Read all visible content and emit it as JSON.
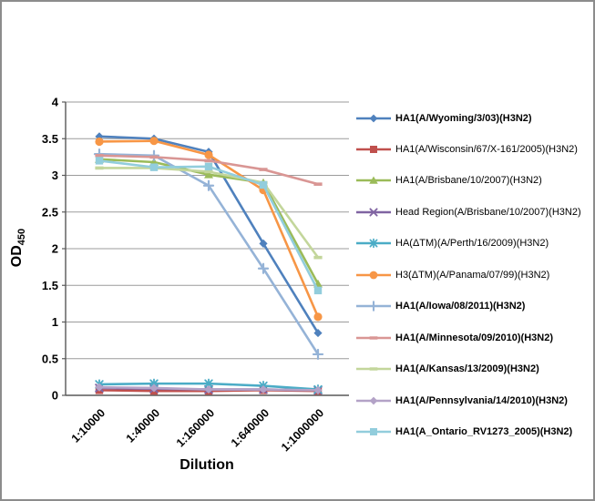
{
  "figure": {
    "background": "#FFFFFF",
    "border_color": "#8C8C8C",
    "gridline_color": "#9B9B9B",
    "axis_line_color": "#595959",
    "tick_label_color": "#000000"
  },
  "chart_data": {
    "type": "line",
    "title": "",
    "xlabel": "Dilution",
    "ylabel": "OD",
    "ylabel_sub": "450",
    "categories": [
      "1:10000",
      "1:40000",
      "1:160000",
      "1:640000",
      "1:1000000"
    ],
    "y_ticks": [
      "0",
      "0.5",
      "1",
      "1.5",
      "2",
      "2.5",
      "3",
      "3.5",
      "4"
    ],
    "ylim": [
      0,
      4
    ],
    "y_step": 0.5,
    "grid": "horizontal",
    "legend_position": "right",
    "series": [
      {
        "name": "HA1(A/Wyoming/3/03)(H3N2)",
        "color": "#4F81BD",
        "marker": "diamond",
        "bold": true,
        "values": [
          3.53,
          3.5,
          3.32,
          2.07,
          0.85
        ]
      },
      {
        "name": "HA1(A/Wisconsin/67/X-161/2005)(H3N2)",
        "color": "#C0504D",
        "marker": "square",
        "bold": false,
        "values": [
          0.07,
          0.06,
          0.06,
          0.07,
          0.06
        ]
      },
      {
        "name": "HA1(A/Brisbane/10/2007)(H3N2)",
        "color": "#9BBB59",
        "marker": "triangle",
        "bold": false,
        "values": [
          3.22,
          3.18,
          3.01,
          2.9,
          1.52
        ]
      },
      {
        "name": "Head Region(A/Brisbane/10/2007)(H3N2)",
        "color": "#8064A2",
        "marker": "x",
        "bold": false,
        "values": [
          0.1,
          0.09,
          0.08,
          0.08,
          0.07
        ]
      },
      {
        "name": "HA(ΔTM)(A/Perth/16/2009)(H3N2)",
        "color": "#4BACC6",
        "marker": "star",
        "bold": false,
        "values": [
          0.15,
          0.16,
          0.16,
          0.13,
          0.08
        ]
      },
      {
        "name": "H3(ΔTM)(A/Panama/07/99)(H3N2)",
        "color": "#F79646",
        "marker": "circle",
        "bold": false,
        "values": [
          3.46,
          3.47,
          3.28,
          2.8,
          1.07
        ]
      },
      {
        "name": "HA1(A/Iowa/08/2011)(H3N2)",
        "color": "#95B3D7",
        "marker": "plus",
        "bold": true,
        "values": [
          3.29,
          3.27,
          2.86,
          1.73,
          0.56
        ]
      },
      {
        "name": "HA1(A/Minnesota/09/2010)(H3N2)",
        "color": "#D99694",
        "marker": "dash",
        "bold": true,
        "values": [
          3.27,
          3.25,
          3.2,
          3.08,
          2.88
        ]
      },
      {
        "name": "HA1(A/Kansas/13/2009)(H3N2)",
        "color": "#C3D69B",
        "marker": "dash",
        "bold": true,
        "values": [
          3.1,
          3.1,
          3.05,
          2.9,
          1.88
        ]
      },
      {
        "name": "HA1(A/Pennsylvania/14/2010)(H3N2)",
        "color": "#B3A2C7",
        "marker": "diamond",
        "bold": true,
        "values": [
          0.11,
          0.1,
          0.08,
          0.08,
          0.07
        ]
      },
      {
        "name": "HA1(A_Ontario_RV1273_2005)(H3N2)",
        "color": "#92CDDC",
        "marker": "square",
        "bold": true,
        "values": [
          3.2,
          3.11,
          3.12,
          2.87,
          1.43
        ]
      }
    ]
  }
}
